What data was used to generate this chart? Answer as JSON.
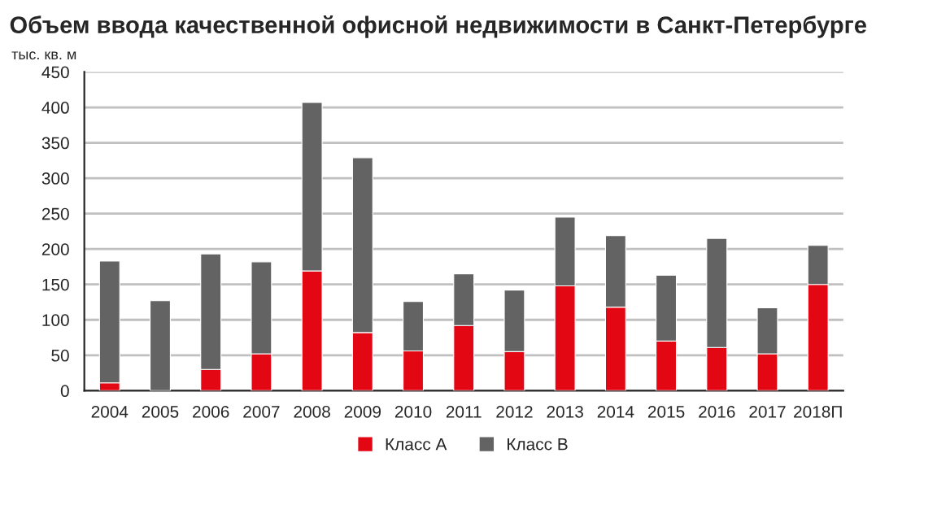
{
  "chart_data": {
    "type": "bar",
    "title": "Объем ввода качественной офисной недвижимости в Санкт-Петербурге",
    "ylabel": "тыс. кв. м",
    "categories": [
      "2004",
      "2005",
      "2006",
      "2007",
      "2008",
      "2009",
      "2010",
      "2011",
      "2012",
      "2013",
      "2014",
      "2015",
      "2016",
      "2017",
      "2018П"
    ],
    "stacked": true,
    "series": [
      {
        "name": "Класс А",
        "color": "#e30613",
        "values": [
          11,
          0,
          30,
          52,
          169,
          82,
          56,
          92,
          55,
          148,
          118,
          70,
          61,
          52,
          150
        ]
      },
      {
        "name": "Класс В",
        "color": "#636363",
        "values": [
          172,
          127,
          163,
          130,
          238,
          247,
          70,
          73,
          87,
          97,
          101,
          93,
          154,
          65,
          55
        ]
      }
    ],
    "ylim": [
      0,
      450
    ],
    "yticks": [
      0,
      50,
      100,
      150,
      200,
      250,
      300,
      350,
      400,
      450
    ],
    "grid": "y",
    "legend": "bottom"
  }
}
